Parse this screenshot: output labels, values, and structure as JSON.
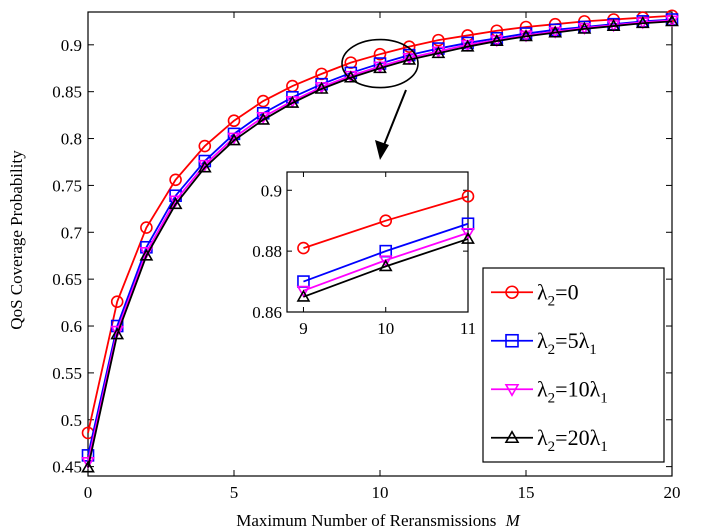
{
  "chart_data": {
    "type": "line",
    "title": "",
    "xlabel": "Maximum Number of Reransmissions",
    "xlabel_var": "M",
    "ylabel": "QoS Coverage Probability",
    "xlim": [
      0,
      20
    ],
    "ylim": [
      0.44,
      0.935
    ],
    "xticks": [
      0,
      5,
      10,
      15,
      20
    ],
    "xtick_labels": [
      "0",
      "5",
      "10",
      "15",
      "20"
    ],
    "yticks": [
      0.45,
      0.5,
      0.55,
      0.6,
      0.65,
      0.7,
      0.75,
      0.8,
      0.85,
      0.9
    ],
    "ytick_labels": [
      "0.45",
      "0.5",
      "0.55",
      "0.6",
      "0.65",
      "0.7",
      "0.75",
      "0.8",
      "0.85",
      "0.9"
    ],
    "grid": false,
    "legend_position": "bottom-right",
    "x": [
      0,
      1,
      2,
      3,
      4,
      5,
      6,
      7,
      8,
      9,
      10,
      11,
      12,
      13,
      14,
      15,
      16,
      17,
      18,
      19,
      20
    ],
    "series": [
      {
        "name_main": "λ",
        "name_sub": "2",
        "name_rest": "=0",
        "name_sub2": "",
        "color": "#ff0000",
        "marker": "circle",
        "values": [
          0.486,
          0.626,
          0.705,
          0.756,
          0.792,
          0.819,
          0.84,
          0.856,
          0.869,
          0.881,
          0.89,
          0.898,
          0.905,
          0.91,
          0.915,
          0.919,
          0.922,
          0.925,
          0.927,
          0.929,
          0.931
        ]
      },
      {
        "name_main": "λ",
        "name_sub": "2",
        "name_rest": "=5λ",
        "name_sub2": "1",
        "color": "#0000ff",
        "marker": "square",
        "values": [
          0.462,
          0.6,
          0.684,
          0.739,
          0.776,
          0.805,
          0.827,
          0.844,
          0.858,
          0.87,
          0.88,
          0.889,
          0.896,
          0.902,
          0.907,
          0.912,
          0.916,
          0.919,
          0.922,
          0.925,
          0.927
        ]
      },
      {
        "name_main": "λ",
        "name_sub": "2",
        "name_rest": "=10λ",
        "name_sub2": "1",
        "color": "#ff00ff",
        "marker": "triangle-down",
        "values": [
          0.455,
          0.595,
          0.679,
          0.734,
          0.772,
          0.801,
          0.823,
          0.84,
          0.855,
          0.867,
          0.877,
          0.886,
          0.893,
          0.9,
          0.905,
          0.91,
          0.914,
          0.918,
          0.921,
          0.924,
          0.926
        ]
      },
      {
        "name_main": "λ",
        "name_sub": "2",
        "name_rest": "=20λ",
        "name_sub2": "1",
        "color": "#000000",
        "marker": "triangle-up",
        "values": [
          0.449,
          0.591,
          0.675,
          0.73,
          0.769,
          0.798,
          0.82,
          0.838,
          0.853,
          0.865,
          0.875,
          0.884,
          0.891,
          0.898,
          0.904,
          0.909,
          0.913,
          0.917,
          0.92,
          0.923,
          0.925
        ]
      }
    ],
    "inset": {
      "xlim": [
        8.8,
        11
      ],
      "ylim": [
        0.86,
        0.906
      ],
      "xticks": [
        9,
        10,
        11
      ],
      "xtick_labels": [
        "9",
        "10",
        "11"
      ],
      "yticks": [
        0.86,
        0.88,
        0.9
      ],
      "ytick_labels": [
        "0.86",
        "0.88",
        "0.9"
      ],
      "x": [
        9,
        10,
        11
      ]
    }
  }
}
